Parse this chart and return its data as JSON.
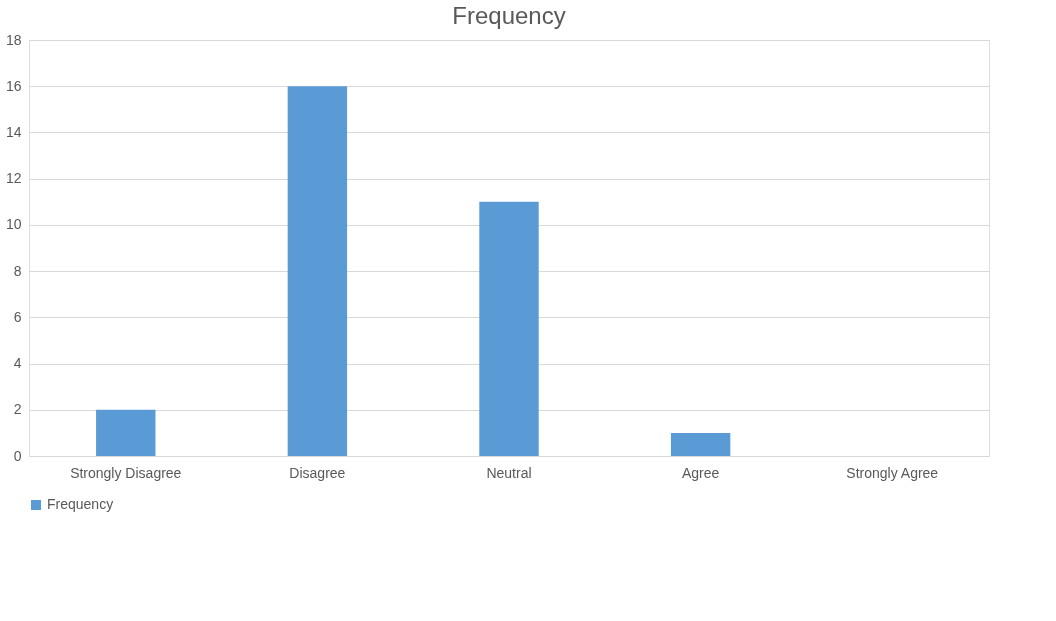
{
  "chart_data": {
    "type": "bar",
    "title": "Frequency",
    "categories": [
      "Strongly Disagree",
      "Disagree",
      "Neutral",
      "Agree",
      "Strongly Agree"
    ],
    "series": [
      {
        "name": "Frequency",
        "color": "#5b9bd5",
        "values": [
          2,
          16,
          11,
          1,
          0
        ]
      }
    ],
    "ylim": [
      0,
      18
    ],
    "yticks": [
      0,
      2,
      4,
      6,
      8,
      10,
      12,
      14,
      16,
      18
    ],
    "grid": "y",
    "legend": "bottom"
  }
}
